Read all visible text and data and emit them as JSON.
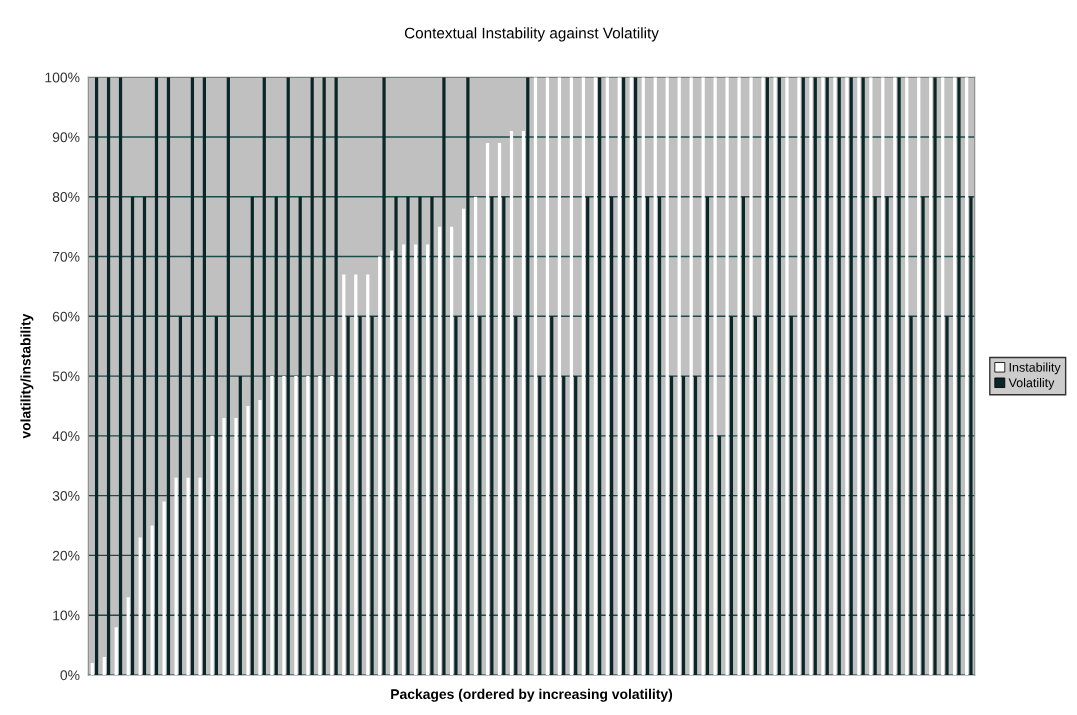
{
  "chart_data": {
    "type": "bar",
    "title": "Contextual Instability against Volatility",
    "xlabel": "Packages (ordered by increasing volatility)",
    "ylabel": "volatility/instability",
    "categories": [
      null,
      null,
      null,
      null,
      null,
      null,
      null,
      null,
      null,
      null,
      null,
      null,
      null,
      null,
      null,
      null,
      null,
      null,
      null,
      null,
      null,
      null,
      null,
      null,
      null,
      null,
      null,
      null,
      null,
      null,
      null,
      null,
      null,
      null,
      null,
      null,
      null,
      null,
      null,
      null,
      null,
      null,
      null,
      null,
      null,
      null,
      null,
      null,
      null,
      null,
      null,
      null,
      null,
      null,
      null,
      null,
      null,
      null,
      null,
      null,
      null,
      null,
      null,
      null,
      null,
      null,
      null,
      null,
      null,
      null,
      null,
      null,
      null,
      null
    ],
    "series": [
      {
        "name": "Instability",
        "color": "#ffffff",
        "values": [
          2,
          3,
          8,
          13,
          23,
          25,
          29,
          33,
          33,
          33,
          40,
          43,
          43,
          45,
          46,
          50,
          50,
          50,
          50,
          50,
          50,
          67,
          67,
          67,
          70,
          71,
          72,
          72,
          72,
          75,
          75,
          78,
          80,
          89,
          89,
          91,
          91,
          100,
          100,
          100,
          100,
          100,
          100,
          100,
          100,
          100,
          100,
          100,
          100,
          100,
          100,
          100,
          100,
          100,
          100,
          100,
          100,
          100,
          100,
          100,
          100,
          100,
          100,
          100,
          100,
          100,
          100,
          100,
          100,
          100,
          100,
          100,
          100,
          100
        ]
      },
      {
        "name": "Volatility",
        "color": "#0a2626",
        "values": [
          100,
          100,
          100,
          80,
          80,
          100,
          100,
          60,
          100,
          100,
          60,
          100,
          50,
          80,
          100,
          80,
          100,
          80,
          100,
          100,
          100,
          60,
          60,
          60,
          100,
          80,
          80,
          80,
          80,
          100,
          60,
          100,
          60,
          80,
          80,
          60,
          100,
          50,
          60,
          50,
          50,
          80,
          100,
          80,
          100,
          100,
          80,
          80,
          50,
          50,
          50,
          80,
          40,
          60,
          80,
          60,
          100,
          100,
          60,
          100,
          100,
          100,
          100,
          100,
          100,
          80,
          80,
          100,
          60,
          80,
          100,
          60,
          100,
          80
        ]
      }
    ],
    "ylim": [
      0,
      100
    ],
    "yticks": [
      {
        "value": 0,
        "label": "0%"
      },
      {
        "value": 10,
        "label": "10%"
      },
      {
        "value": 20,
        "label": "20%"
      },
      {
        "value": 30,
        "label": "30%"
      },
      {
        "value": 40,
        "label": "40%"
      },
      {
        "value": 50,
        "label": "50%"
      },
      {
        "value": 60,
        "label": "60%"
      },
      {
        "value": 70,
        "label": "70%"
      },
      {
        "value": 80,
        "label": "80%"
      },
      {
        "value": 90,
        "label": "90%"
      },
      {
        "value": 100,
        "label": "100%"
      }
    ],
    "grid": "y",
    "legend": "right"
  }
}
